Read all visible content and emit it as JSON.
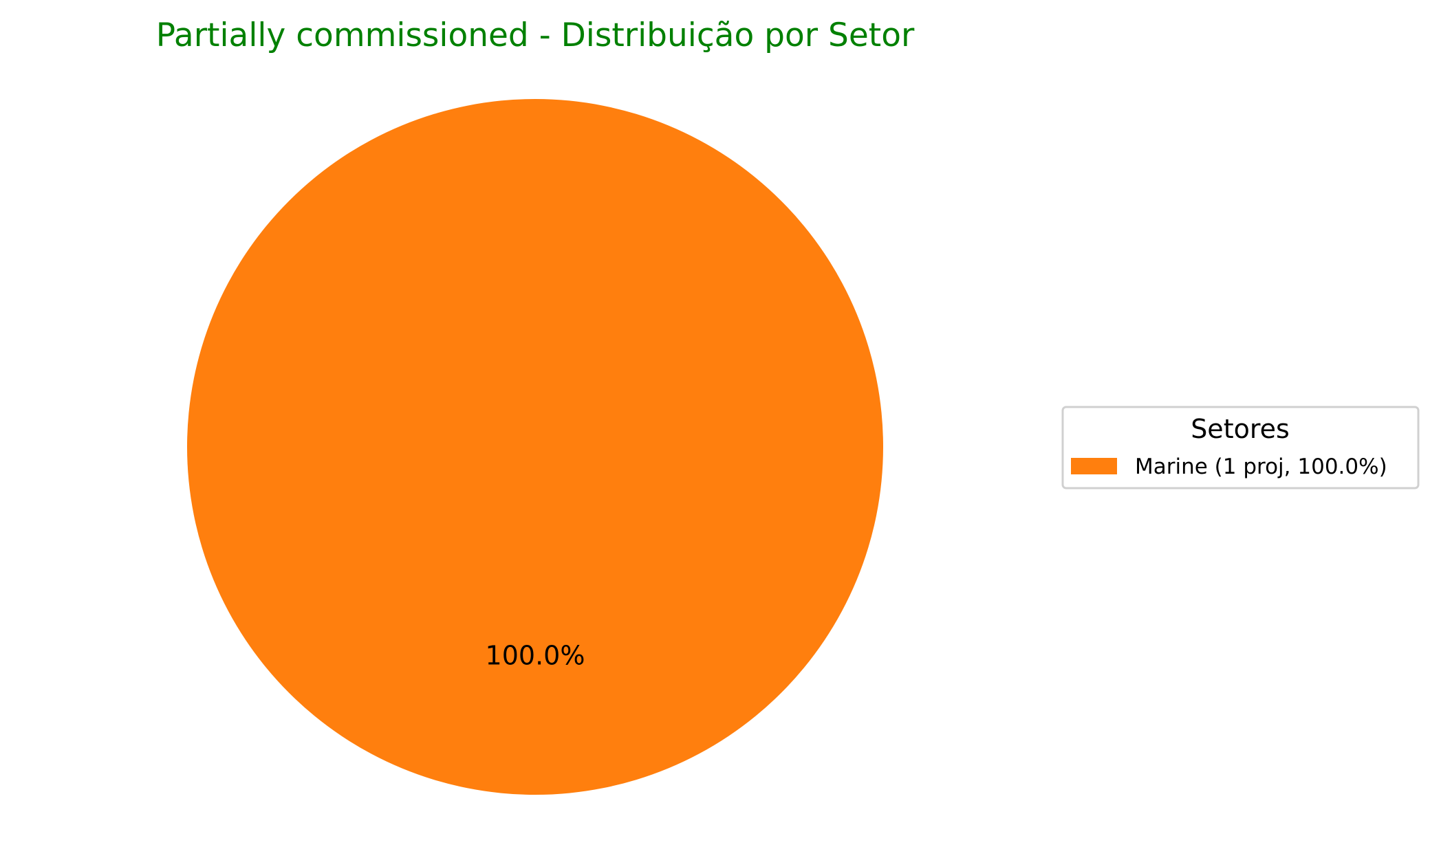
{
  "chart_data": {
    "type": "pie",
    "title": "Partially commissioned - Distribuição por Setor",
    "title_color": "#008000",
    "slices": [
      {
        "label": "Marine",
        "value": 1,
        "percent": 100.0,
        "autopct_label": "100.0%",
        "legend_label": "Marine (1 proj, 100.0%)",
        "color": "#ff7f0e"
      }
    ],
    "legend": {
      "title": "Setores",
      "placement": "center-right"
    }
  }
}
